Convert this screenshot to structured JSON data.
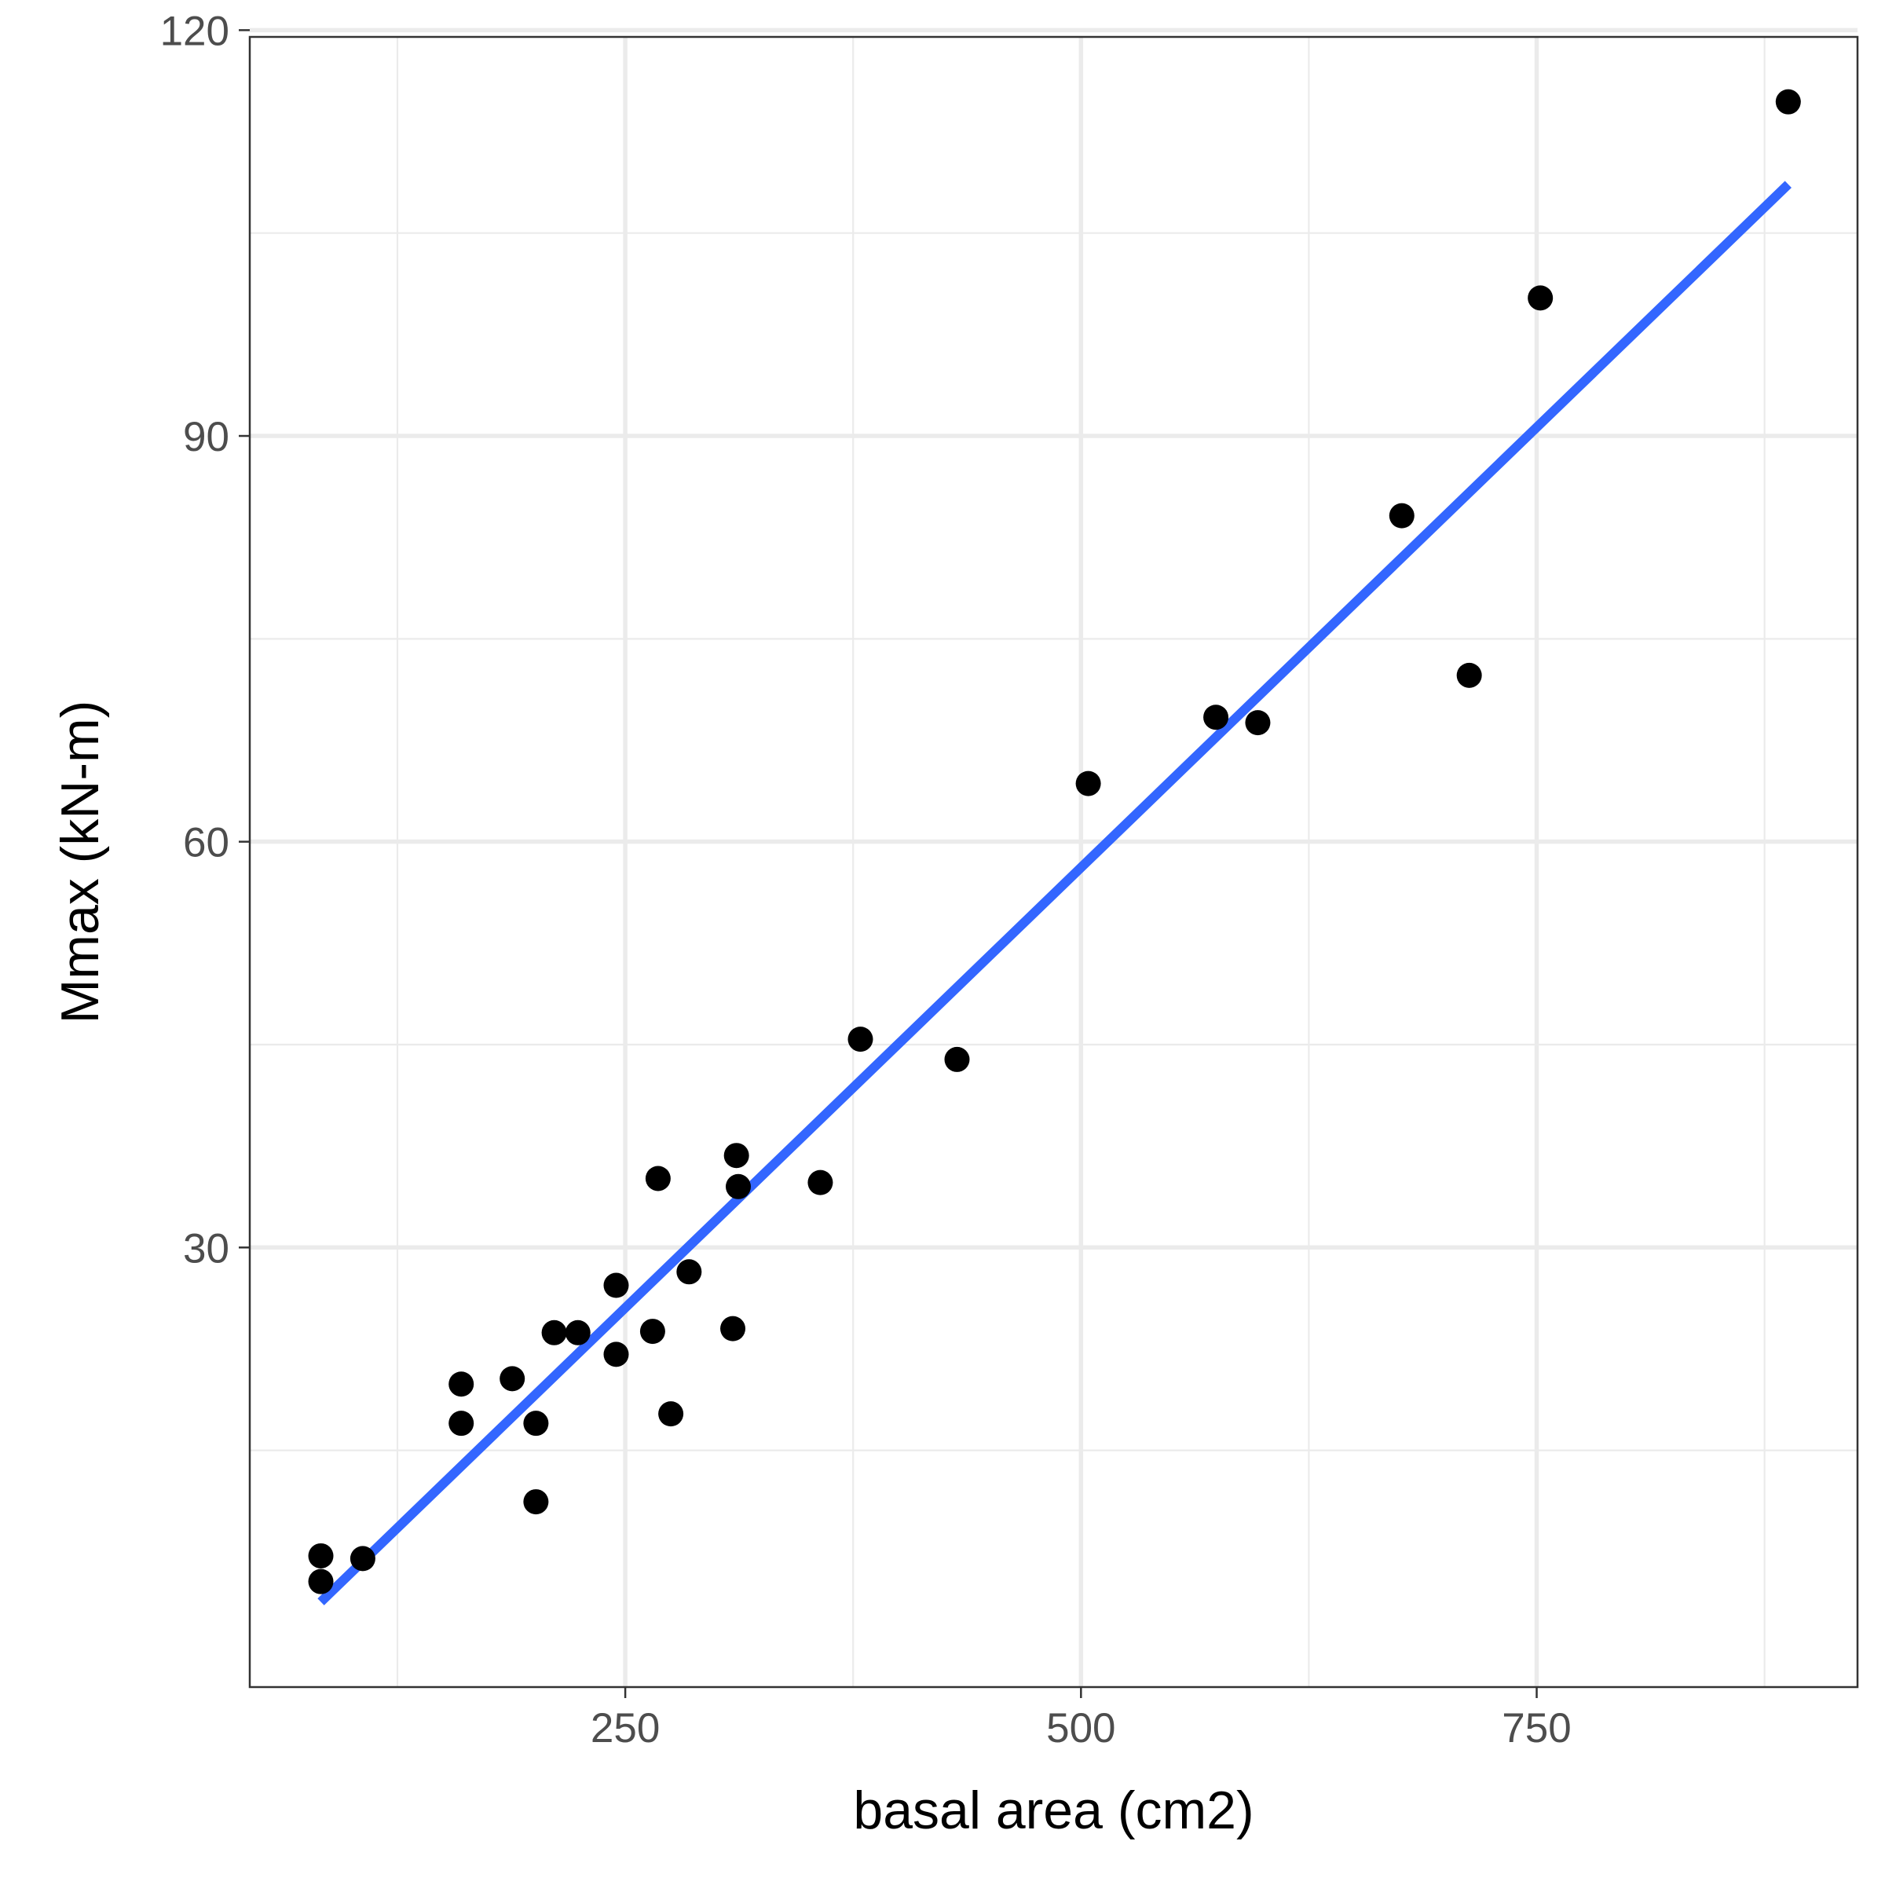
{
  "chart_data": {
    "type": "scatter",
    "xlabel": "basal area (cm2)",
    "ylabel": "Mmax (kN-m)",
    "xlim": [
      44,
      926
    ],
    "ylim": [
      -2.5,
      119.5
    ],
    "x_ticks": [
      250,
      500,
      750
    ],
    "x_tick_labels": [
      "250",
      "500",
      "750"
    ],
    "x_minor_ticks": [
      125,
      375,
      625,
      875
    ],
    "y_ticks": [
      30,
      60,
      90,
      120
    ],
    "y_tick_labels": [
      "30",
      "60",
      "90",
      "120"
    ],
    "y_minor_ticks": [
      15,
      45,
      75,
      105
    ],
    "grid": true,
    "theme": "bw",
    "point_color": "#000000",
    "line_color": "#3366ff",
    "series": [
      {
        "type": "scatter",
        "points": [
          {
            "x": 83,
            "y": 7.2
          },
          {
            "x": 83,
            "y": 5.3
          },
          {
            "x": 106,
            "y": 7.0
          },
          {
            "x": 160,
            "y": 19.9
          },
          {
            "x": 160,
            "y": 17.0
          },
          {
            "x": 188,
            "y": 20.3
          },
          {
            "x": 201,
            "y": 17.0
          },
          {
            "x": 201,
            "y": 11.2
          },
          {
            "x": 211,
            "y": 23.7
          },
          {
            "x": 224,
            "y": 23.7
          },
          {
            "x": 245,
            "y": 27.2
          },
          {
            "x": 245,
            "y": 22.1
          },
          {
            "x": 265,
            "y": 23.8
          },
          {
            "x": 268,
            "y": 35.1
          },
          {
            "x": 275,
            "y": 17.7
          },
          {
            "x": 285,
            "y": 28.2
          },
          {
            "x": 309,
            "y": 24.0
          },
          {
            "x": 311,
            "y": 36.8
          },
          {
            "x": 312,
            "y": 34.5
          },
          {
            "x": 357,
            "y": 34.8
          },
          {
            "x": 379,
            "y": 45.4
          },
          {
            "x": 432,
            "y": 43.9
          },
          {
            "x": 504,
            "y": 64.3
          },
          {
            "x": 574,
            "y": 69.2
          },
          {
            "x": 597,
            "y": 68.8
          },
          {
            "x": 676,
            "y": 84.1
          },
          {
            "x": 713,
            "y": 72.3
          },
          {
            "x": 752,
            "y": 100.2
          },
          {
            "x": 888,
            "y": 114.7
          }
        ]
      },
      {
        "type": "line",
        "method": "lm",
        "x": [
          83,
          888
        ],
        "y": [
          3.8,
          108.6
        ]
      }
    ]
  }
}
